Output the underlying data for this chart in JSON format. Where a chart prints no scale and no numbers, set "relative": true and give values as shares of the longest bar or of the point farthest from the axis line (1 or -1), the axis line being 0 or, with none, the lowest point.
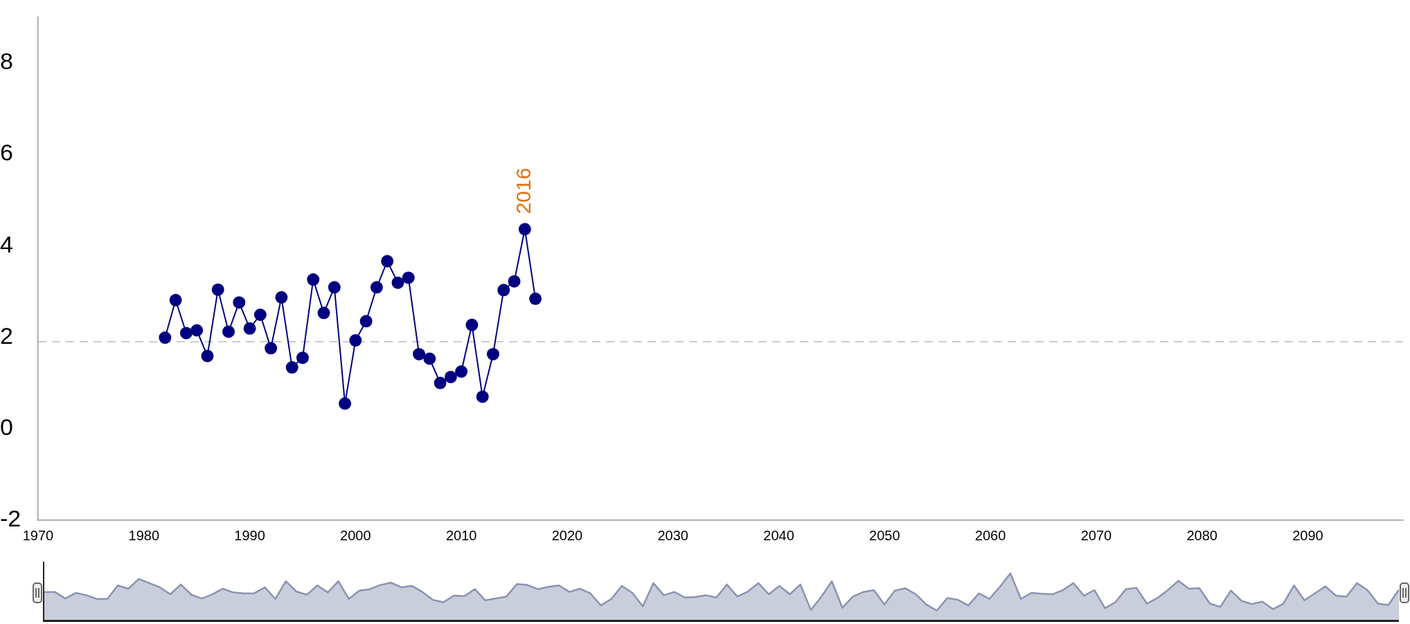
{
  "chart_data": [
    {
      "type": "line",
      "color": "#000080",
      "marker": "circle",
      "line_style": "solid",
      "x": [
        1982,
        1983,
        1984,
        1985,
        1986,
        1987,
        1988,
        1989,
        1990,
        1991,
        1992,
        1993,
        1994,
        1995,
        1996,
        1997,
        1998,
        1999,
        2000,
        2001,
        2002,
        2003,
        2004,
        2005,
        2006,
        2007,
        2008,
        2009,
        2010,
        2011,
        2012,
        2013,
        2014,
        2015,
        2016,
        2017
      ],
      "values": [
        1.99,
        2.81,
        2.09,
        2.15,
        1.59,
        3.04,
        2.12,
        2.76,
        2.19,
        2.49,
        1.76,
        2.87,
        1.34,
        1.55,
        3.26,
        2.53,
        3.09,
        0.55,
        1.93,
        2.35,
        3.09,
        3.66,
        3.19,
        3.3,
        1.63,
        1.53,
        1.0,
        1.13,
        1.25,
        2.27,
        0.7,
        1.63,
        3.03,
        3.22,
        4.36,
        2.84
      ],
      "xlim": [
        1970,
        2099
      ],
      "xticks": [
        1970,
        1980,
        1990,
        2000,
        2010,
        2020,
        2030,
        2040,
        2050,
        2060,
        2070,
        2080,
        2090
      ],
      "ylim": [
        -2,
        9
      ],
      "yticks": [
        -2,
        0,
        2,
        4,
        6,
        8
      ],
      "ref_lines": [
        {
          "axis": "y",
          "value": 1.9,
          "color": "#cccccc",
          "line_style": "dashed"
        }
      ],
      "annotations": [
        {
          "text": "2016",
          "x": 2016,
          "y": 4.36
        }
      ]
    },
    {
      "type": "area",
      "relative": true,
      "color": "#8a93b0",
      "categories": [
        null,
        null,
        null,
        null,
        null,
        null,
        null,
        null,
        null,
        null,
        null,
        null,
        null,
        null,
        null,
        null,
        null,
        null,
        null,
        null,
        null,
        null,
        null,
        null,
        null,
        null,
        null,
        null,
        null,
        null,
        null,
        null,
        null,
        null,
        null,
        null,
        null,
        null,
        null,
        null,
        null,
        null,
        null,
        null,
        null,
        null,
        null,
        null,
        null,
        null,
        null,
        null,
        null,
        null,
        null,
        null,
        null,
        null,
        null,
        null,
        null,
        null,
        null,
        null,
        null,
        null,
        null,
        null,
        null,
        null,
        null,
        null,
        null,
        null,
        null,
        null,
        null,
        null,
        null,
        null,
        null,
        null,
        null,
        null,
        null,
        null,
        null,
        null,
        null,
        null,
        null,
        null,
        null,
        null,
        null,
        null,
        null,
        null,
        null,
        null,
        null,
        null,
        null,
        null,
        null,
        null,
        null,
        null,
        null,
        null,
        null,
        null,
        null,
        null,
        null,
        null,
        null,
        null,
        null,
        null,
        null,
        null,
        null,
        null,
        null,
        null,
        null,
        null,
        null,
        null
      ],
      "values": [
        0.6,
        0.6,
        0.46,
        0.58,
        0.53,
        0.45,
        0.45,
        0.74,
        0.67,
        0.88,
        0.79,
        0.7,
        0.55,
        0.76,
        0.54,
        0.46,
        0.55,
        0.67,
        0.59,
        0.57,
        0.57,
        0.7,
        0.45,
        0.83,
        0.61,
        0.54,
        0.74,
        0.59,
        0.83,
        0.45,
        0.63,
        0.66,
        0.75,
        0.8,
        0.7,
        0.73,
        0.6,
        0.43,
        0.38,
        0.52,
        0.51,
        0.66,
        0.42,
        0.46,
        0.5,
        0.77,
        0.75,
        0.66,
        0.71,
        0.74,
        0.6,
        0.67,
        0.57,
        0.31,
        0.45,
        0.73,
        0.58,
        0.29,
        0.79,
        0.53,
        0.6,
        0.48,
        0.49,
        0.53,
        0.48,
        0.76,
        0.5,
        0.61,
        0.79,
        0.55,
        0.73,
        0.55,
        0.76,
        0.21,
        0.5,
        0.83,
        0.26,
        0.5,
        0.6,
        0.64,
        0.33,
        0.63,
        0.68,
        0.55,
        0.33,
        0.2,
        0.47,
        0.43,
        0.31,
        0.57,
        0.45,
        0.71,
        1.0,
        0.45,
        0.58,
        0.56,
        0.55,
        0.64,
        0.79,
        0.52,
        0.64,
        0.25,
        0.38,
        0.66,
        0.69,
        0.35,
        0.47,
        0.64,
        0.84,
        0.67,
        0.68,
        0.35,
        0.28,
        0.63,
        0.41,
        0.34,
        0.39,
        0.23,
        0.35,
        0.74,
        0.42,
        0.57,
        0.72,
        0.52,
        0.5,
        0.79,
        0.64,
        0.35,
        0.32,
        0.65
      ]
    }
  ]
}
